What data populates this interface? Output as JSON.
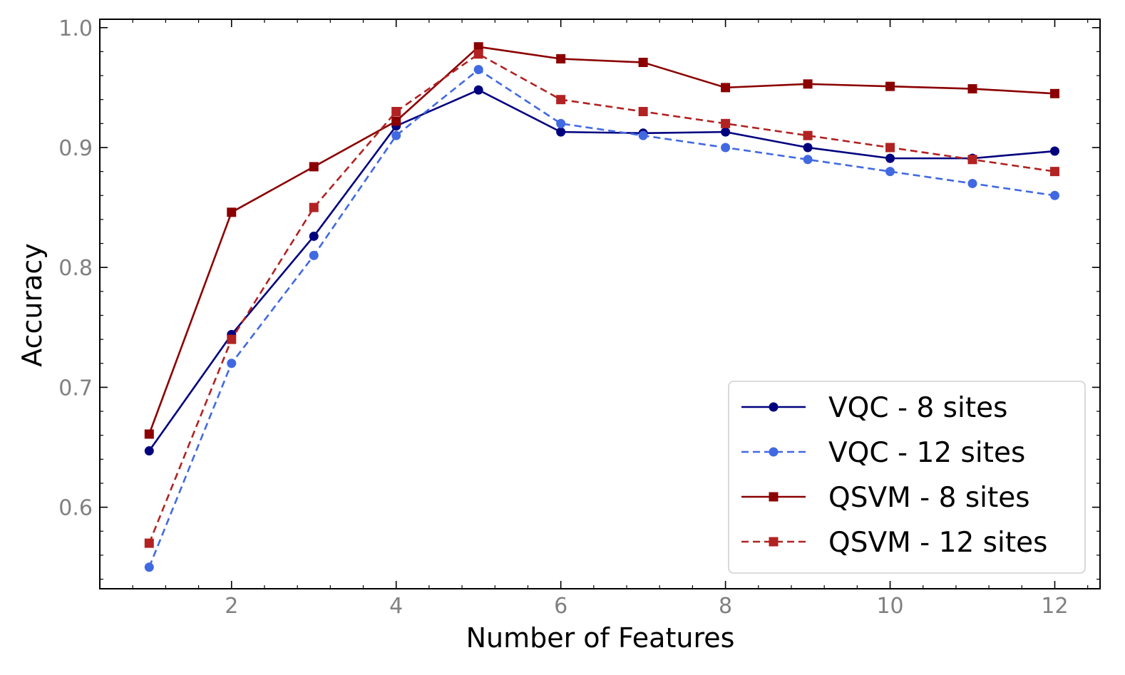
{
  "chart_data": {
    "type": "line",
    "title": "",
    "xlabel": "Number of Features",
    "ylabel": "Accuracy",
    "xlim": [
      0.4,
      12.55
    ],
    "ylim": [
      0.532,
      1.007
    ],
    "x": [
      1,
      2,
      3,
      4,
      5,
      6,
      7,
      8,
      9,
      10,
      11,
      12
    ],
    "x_ticks": [
      2,
      4,
      6,
      8,
      10,
      12
    ],
    "x_tick_labels": [
      "2",
      "4",
      "6",
      "8",
      "10",
      "12"
    ],
    "y_ticks": [
      0.6,
      0.7,
      0.8,
      0.9,
      1.0
    ],
    "y_tick_labels": [
      "0.6",
      "0.7",
      "0.8",
      "0.9",
      "1.0"
    ],
    "grid": false,
    "legend_position": "bottom-right",
    "series": [
      {
        "name": "VQC - 8 sites",
        "color": "#00007f",
        "line_style": "solid",
        "marker": "circle",
        "values": [
          0.647,
          0.744,
          0.826,
          0.918,
          0.948,
          0.913,
          0.912,
          0.913,
          0.9,
          0.891,
          0.891,
          0.897
        ]
      },
      {
        "name": "VQC - 12 sites",
        "color": "#4169e1",
        "line_style": "dashed",
        "marker": "circle",
        "values": [
          0.55,
          0.72,
          0.81,
          0.91,
          0.965,
          0.92,
          0.91,
          0.9,
          0.89,
          0.88,
          0.87,
          0.86
        ]
      },
      {
        "name": "QSVM - 8 sites",
        "color": "#8b0000",
        "line_style": "solid",
        "marker": "square",
        "values": [
          0.661,
          0.846,
          0.884,
          0.922,
          0.984,
          0.974,
          0.971,
          0.95,
          0.953,
          0.951,
          0.949,
          0.945
        ]
      },
      {
        "name": "QSVM - 12 sites",
        "color": "#b22222",
        "line_style": "dashed",
        "marker": "square",
        "values": [
          0.57,
          0.74,
          0.85,
          0.93,
          0.978,
          0.94,
          0.93,
          0.92,
          0.91,
          0.9,
          0.89,
          0.88
        ]
      }
    ]
  }
}
